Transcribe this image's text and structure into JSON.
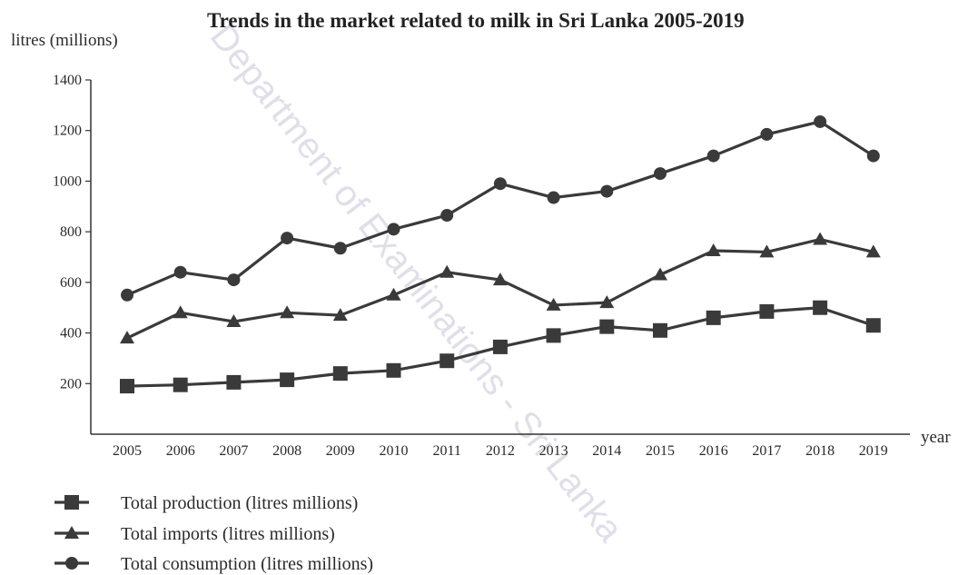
{
  "watermark": {
    "text": "Department of Examinations - Sri Lanka"
  },
  "chart_data": {
    "type": "line",
    "title": "Trends in the market related to milk in Sri Lanka 2005-2019",
    "ylabel": "litres (millions)",
    "xlabel": "year",
    "ylim": [
      0,
      1400
    ],
    "yticks": [
      "200",
      "400",
      "600",
      "800",
      "1000",
      "1200",
      "1400"
    ],
    "grid": false,
    "categories": [
      "2005",
      "2006",
      "2007",
      "2008",
      "2009",
      "2010",
      "2011",
      "2012",
      "2013",
      "2014",
      "2015",
      "2016",
      "2017",
      "2018",
      "2019"
    ],
    "series": [
      {
        "name": "Total production (litres millions)",
        "marker": "square",
        "color": "#3a3a3a",
        "values": [
          190,
          195,
          205,
          215,
          240,
          252,
          290,
          345,
          390,
          425,
          410,
          460,
          485,
          500,
          430
        ]
      },
      {
        "name": "Total imports (litres millions)",
        "marker": "triangle",
        "color": "#3a3a3a",
        "values": [
          380,
          480,
          445,
          480,
          470,
          550,
          640,
          610,
          510,
          520,
          630,
          725,
          720,
          770,
          720
        ]
      },
      {
        "name": "Total consumption (litres millions)",
        "marker": "circle",
        "color": "#3a3a3a",
        "values": [
          550,
          640,
          610,
          775,
          735,
          810,
          865,
          990,
          935,
          960,
          1030,
          1100,
          1185,
          1235,
          1100
        ]
      }
    ],
    "legend_position": "bottom-left"
  }
}
